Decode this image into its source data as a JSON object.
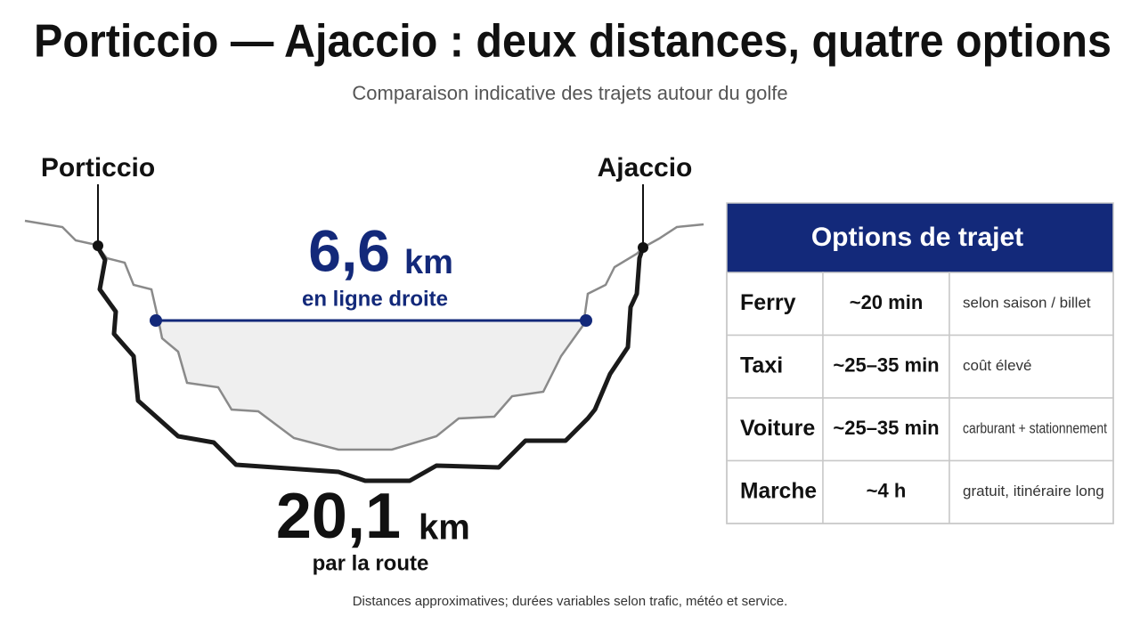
{
  "header": {
    "title": "Porticcio — Ajaccio : deux distances, quatre options",
    "subtitle": "Comparaison indicative des trajets autour du golfe"
  },
  "map": {
    "places": [
      "Porticcio",
      "Ajaccio"
    ],
    "straight": {
      "value": "6,6",
      "unit": "km",
      "label": "en ligne droite"
    },
    "road": {
      "value": "20,1",
      "unit": "km",
      "label": "par la route"
    }
  },
  "table": {
    "title": "Options de trajet",
    "rows": [
      [
        "Ferry",
        "~20 min",
        "selon saison / billet"
      ],
      [
        "Taxi",
        "~25–35 min",
        "coût élevé"
      ],
      [
        "Voiture",
        "~25–35 min",
        "carburant + stationnement"
      ],
      [
        "Marche",
        "~4 h",
        "gratuit, itinéraire long"
      ]
    ]
  },
  "footer": "Distances approximatives; durées variables selon trafic, météo et service."
}
